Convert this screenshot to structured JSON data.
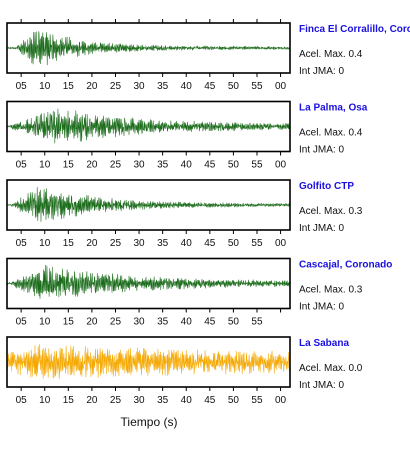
{
  "chart_data": {
    "type": "line",
    "x_range": [
      2,
      62
    ],
    "x_tick_labels": [
      "05",
      "10",
      "15",
      "20",
      "25",
      "30",
      "35",
      "40",
      "45",
      "50",
      "55",
      "00"
    ],
    "xlabel": "Tiempo (s)",
    "panels": [
      {
        "station": "Finca El Corralillo, Coronado",
        "acel_label": "Acel. Max. 0.4",
        "jma_label": "Int JMA: 0",
        "color": "#1a6b1a",
        "envelope": {
          "onset": 4,
          "peak": 8.5,
          "decay": 9,
          "amp": 0.95,
          "floor": 0.08
        },
        "bottom_ticks": [
          "05",
          "10",
          "15",
          "20",
          "25",
          "30",
          "35",
          "40",
          "45",
          "50",
          "55",
          "00"
        ]
      },
      {
        "station": "La Palma, Osa",
        "acel_label": "Acel. Max. 0.4",
        "jma_label": "Int JMA: 0",
        "color": "#1a6b1a",
        "envelope": {
          "onset": 3,
          "peak": 13,
          "decay": 16,
          "amp": 0.9,
          "floor": 0.12
        },
        "bottom_ticks": [
          "05",
          "10",
          "15",
          "20",
          "25",
          "30",
          "35",
          "40",
          "45",
          "50",
          "55",
          "00"
        ]
      },
      {
        "station": "Golfito CTP",
        "acel_label": "Acel. Max. 0.3",
        "jma_label": "Int JMA: 0",
        "color": "#1a6b1a",
        "envelope": {
          "onset": 3,
          "peak": 9,
          "decay": 12,
          "amp": 0.95,
          "floor": 0.07
        },
        "bottom_ticks": [
          "05",
          "10",
          "15",
          "20",
          "25",
          "30",
          "35",
          "40",
          "45",
          "50",
          "55",
          "00"
        ]
      },
      {
        "station": "Cascajal, Coronado",
        "acel_label": "Acel. Max. 0.3",
        "jma_label": "Int JMA: 0",
        "color": "#1a6b1a",
        "envelope": {
          "onset": 3,
          "peak": 10,
          "decay": 18,
          "amp": 0.9,
          "floor": 0.1
        },
        "bottom_ticks": [
          "05",
          "10",
          "15",
          "20",
          "25",
          "30",
          "35",
          "40",
          "45",
          "50",
          "55"
        ]
      },
      {
        "station": "La Sabana",
        "acel_label": "Acel. Max. 0.0",
        "jma_label": "Int JMA: 0",
        "color": "#f5a800",
        "envelope": {
          "onset": 2,
          "peak": 8,
          "decay": 40,
          "amp": 0.85,
          "floor": 0.4
        },
        "bottom_ticks": [
          "05",
          "10",
          "15",
          "20",
          "25",
          "30",
          "35",
          "40",
          "45",
          "50",
          "55",
          "00"
        ]
      }
    ]
  }
}
